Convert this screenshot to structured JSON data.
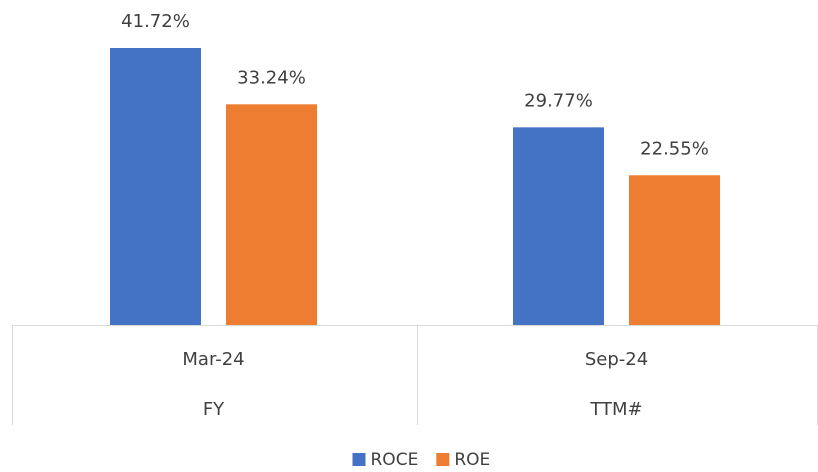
{
  "chart_data": {
    "type": "bar",
    "categories": [
      "Mar-24",
      "Sep-24"
    ],
    "subcategories": [
      "FY",
      "TTM#"
    ],
    "series": [
      {
        "name": "ROCE",
        "color": "#4472c4",
        "values": [
          41.72,
          29.77
        ],
        "value_labels": [
          "41.72%",
          "29.77%"
        ]
      },
      {
        "name": "ROE",
        "color": "#ed7d31",
        "values": [
          33.24,
          22.55
        ],
        "value_labels": [
          "33.24%",
          "22.55%"
        ]
      }
    ],
    "legend": "bottom"
  }
}
